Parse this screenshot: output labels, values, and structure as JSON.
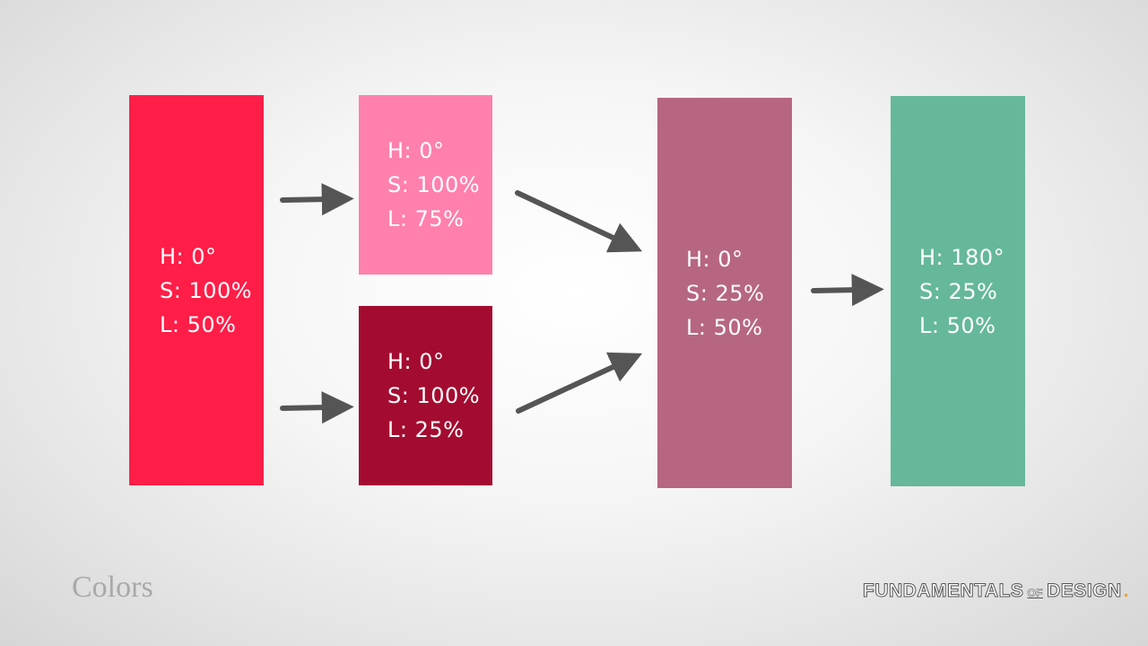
{
  "boxes": [
    {
      "id": "red",
      "color": "#ff1e48",
      "lines": [
        "H: 0°",
        "S: 100%",
        "L: 50%"
      ]
    },
    {
      "id": "light",
      "color": "#ff80ad",
      "lines": [
        "H: 0°",
        "S: 100%",
        "L: 75%"
      ]
    },
    {
      "id": "dark",
      "color": "#a30c30",
      "lines": [
        "H: 0°",
        "S: 100%",
        "L: 25%"
      ]
    },
    {
      "id": "muted",
      "color": "#b76682",
      "lines": [
        "H: 0°",
        "S: 25%",
        "L: 50%"
      ]
    },
    {
      "id": "green",
      "color": "#66b89a",
      "lines": [
        "H: 180°",
        "S: 25%",
        "L: 50%"
      ]
    }
  ],
  "arrow_color": "#555555",
  "footer": {
    "title": "Colors",
    "brand_left": "FUNDAMENTALS",
    "brand_of": "OF",
    "brand_right": "DESIGN",
    "brand_dot": ".",
    "brand_dot_color": "#e7a23a"
  }
}
